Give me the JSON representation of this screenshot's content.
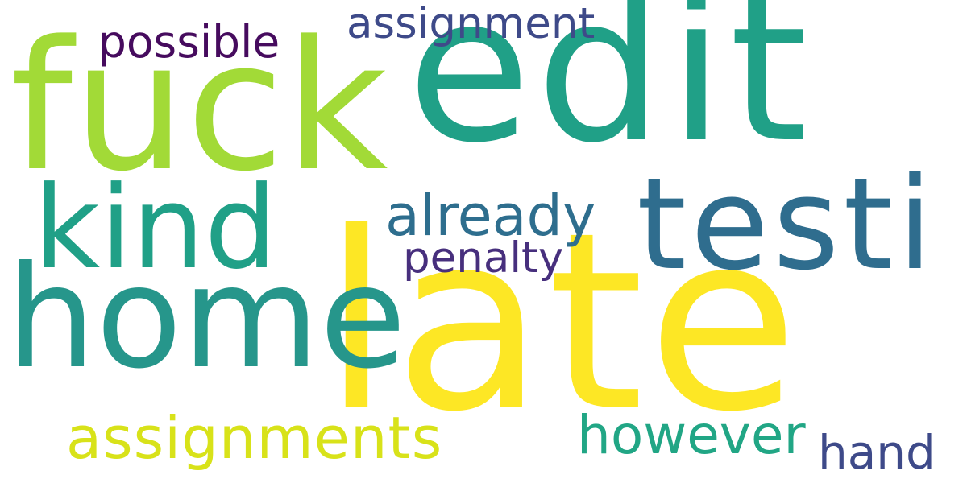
{
  "words": [
    {
      "text": "edit",
      "color": "#20a087"
    },
    {
      "text": "late",
      "color": "#fde725"
    },
    {
      "text": "fuck",
      "color": "#a2da37"
    },
    {
      "text": "home",
      "color": "#26968b"
    },
    {
      "text": "testi",
      "color": "#2f6d8e"
    },
    {
      "text": "kind",
      "color": "#20a087"
    },
    {
      "text": "assignments",
      "color": "#d8e219"
    },
    {
      "text": "already",
      "color": "#2e6e8e"
    },
    {
      "text": "however",
      "color": "#21a685"
    },
    {
      "text": "penalty",
      "color": "#472f7d"
    },
    {
      "text": "assignment",
      "color": "#3e4a89"
    },
    {
      "text": "possible",
      "color": "#460b5e"
    },
    {
      "text": "hand",
      "color": "#3e4a89"
    }
  ]
}
